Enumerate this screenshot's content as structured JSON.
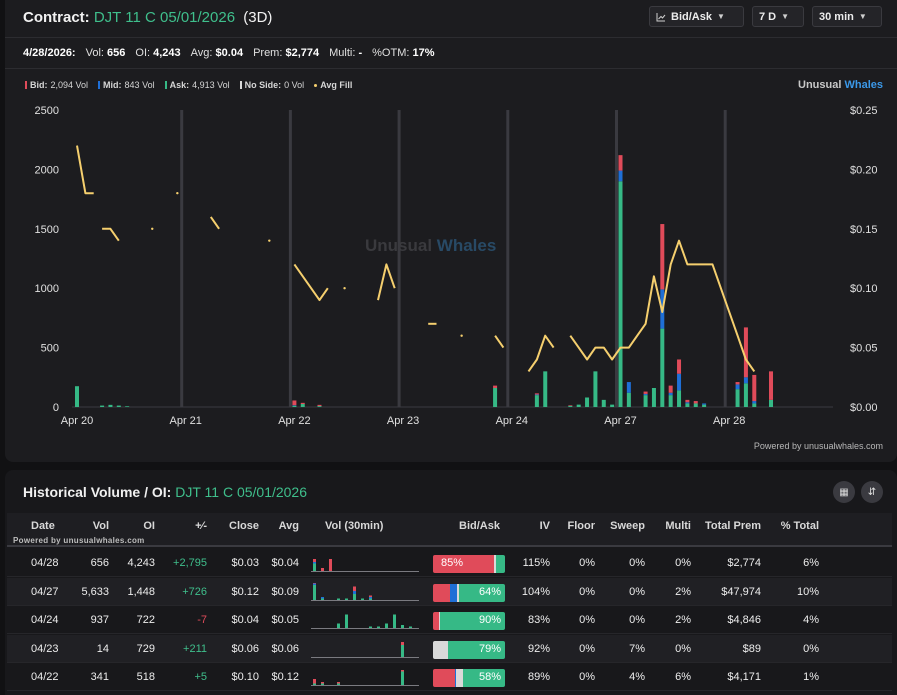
{
  "header": {
    "contract_label": "Contract:",
    "contract_name": "DJT 11 C 05/01/2026",
    "dte": "(3D)",
    "mode_label": "Bid/Ask",
    "range_label": "7 D",
    "interval_label": "30 min"
  },
  "stats": {
    "date": "4/28/2026:",
    "vol_label": "Vol:",
    "vol": "656",
    "oi_label": "OI:",
    "oi": "4,243",
    "avg_label": "Avg:",
    "avg": "$0.04",
    "prem_label": "Prem:",
    "prem": "$2,774",
    "multi_label": "Multi:",
    "multi": "-",
    "otm_label": "%OTM:",
    "otm": "17%"
  },
  "legend": {
    "bid": {
      "label": "Bid:",
      "value": "2,094 Vol"
    },
    "mid": {
      "label": "Mid:",
      "value": "843 Vol"
    },
    "ask": {
      "label": "Ask:",
      "value": "4,913 Vol"
    },
    "noside": {
      "label": "No Side:",
      "value": "0 Vol"
    },
    "avgfill": {
      "label": "Avg Fill"
    }
  },
  "brand": {
    "part1": "Unusual",
    "part2": "Whales"
  },
  "watermark": {
    "part1": "Unusual",
    "part2": "Whales"
  },
  "powered": "Powered by unusualwhales.com",
  "colors": {
    "bid": "#e04b5a",
    "mid": "#1f6fd6",
    "ask": "#36b986",
    "noside": "#d9d9d9",
    "avgfill": "#f5cf6e",
    "accent_green": "#3fbf8c"
  },
  "chart_data": {
    "type": "bar",
    "title": "",
    "x_tick_labels": [
      "Apr 20",
      "Apr 21",
      "Apr 22",
      "Apr 23",
      "Apr 24",
      "Apr 27",
      "Apr 28"
    ],
    "y_left_ticks": [
      "2500",
      "2000",
      "1500",
      "1000",
      "500",
      "0"
    ],
    "y_right_ticks": [
      "$0.25",
      "$0.20",
      "$0.15",
      "$0.10",
      "$0.05",
      "$0.00"
    ],
    "y_left_range": [
      0,
      2500
    ],
    "y_right_range": [
      0,
      0.25
    ],
    "grid": "vertical day separators",
    "session_slots": 13,
    "volume_bars": [
      {
        "day": 0,
        "slot": 0,
        "ask": 175,
        "mid": 0,
        "bid": 0
      },
      {
        "day": 0,
        "slot": 3,
        "ask": 12,
        "mid": 0,
        "bid": 0
      },
      {
        "day": 0,
        "slot": 4,
        "ask": 18,
        "mid": 0,
        "bid": 0
      },
      {
        "day": 0,
        "slot": 5,
        "ask": 12,
        "mid": 0,
        "bid": 0
      },
      {
        "day": 0,
        "slot": 6,
        "ask": 6,
        "mid": 0,
        "bid": 0
      },
      {
        "day": 2,
        "slot": 0,
        "ask": 10,
        "mid": 5,
        "bid": 40
      },
      {
        "day": 2,
        "slot": 1,
        "ask": 25,
        "mid": 0,
        "bid": 10
      },
      {
        "day": 2,
        "slot": 3,
        "ask": 8,
        "mid": 0,
        "bid": 10
      },
      {
        "day": 3,
        "slot": 11,
        "ask": 160,
        "mid": 0,
        "bid": 20
      },
      {
        "day": 4,
        "slot": 3,
        "ask": 100,
        "mid": 5,
        "bid": 10
      },
      {
        "day": 4,
        "slot": 4,
        "ask": 300,
        "mid": 0,
        "bid": 0
      },
      {
        "day": 4,
        "slot": 7,
        "ask": 10,
        "mid": 0,
        "bid": 5
      },
      {
        "day": 4,
        "slot": 8,
        "ask": 20,
        "mid": 0,
        "bid": 0
      },
      {
        "day": 4,
        "slot": 9,
        "ask": 80,
        "mid": 0,
        "bid": 0
      },
      {
        "day": 4,
        "slot": 10,
        "ask": 300,
        "mid": 0,
        "bid": 0
      },
      {
        "day": 4,
        "slot": 11,
        "ask": 60,
        "mid": 0,
        "bid": 0
      },
      {
        "day": 4,
        "slot": 12,
        "ask": 20,
        "mid": 0,
        "bid": 0
      },
      {
        "day": 5,
        "slot": 0,
        "ask": 1900,
        "mid": 90,
        "bid": 130
      },
      {
        "day": 5,
        "slot": 1,
        "ask": 120,
        "mid": 90,
        "bid": 0
      },
      {
        "day": 5,
        "slot": 3,
        "ask": 100,
        "mid": 10,
        "bid": 20
      },
      {
        "day": 5,
        "slot": 4,
        "ask": 160,
        "mid": 0,
        "bid": 0
      },
      {
        "day": 5,
        "slot": 5,
        "ask": 660,
        "mid": 330,
        "bid": 550
      },
      {
        "day": 5,
        "slot": 6,
        "ask": 100,
        "mid": 20,
        "bid": 60
      },
      {
        "day": 5,
        "slot": 7,
        "ask": 140,
        "mid": 140,
        "bid": 120
      },
      {
        "day": 5,
        "slot": 8,
        "ask": 30,
        "mid": 10,
        "bid": 20
      },
      {
        "day": 5,
        "slot": 9,
        "ask": 30,
        "mid": 0,
        "bid": 20
      },
      {
        "day": 5,
        "slot": 10,
        "ask": 20,
        "mid": 10,
        "bid": 0
      },
      {
        "day": 6,
        "slot": 1,
        "ask": 150,
        "mid": 40,
        "bid": 20
      },
      {
        "day": 6,
        "slot": 2,
        "ask": 200,
        "mid": 50,
        "bid": 420
      },
      {
        "day": 6,
        "slot": 3,
        "ask": 30,
        "mid": 20,
        "bid": 220
      },
      {
        "day": 6,
        "slot": 5,
        "ask": 60,
        "mid": 0,
        "bid": 240
      }
    ],
    "avg_fill_segments": [
      [
        {
          "day": 0,
          "slot": 0,
          "v": 0.22
        },
        {
          "day": 0,
          "slot": 1,
          "v": 0.18
        },
        {
          "day": 0,
          "slot": 2,
          "v": 0.18
        }
      ],
      [
        {
          "day": 0,
          "slot": 3,
          "v": 0.15
        },
        {
          "day": 0,
          "slot": 4,
          "v": 0.15
        },
        {
          "day": 0,
          "slot": 5,
          "v": 0.14
        }
      ],
      [
        {
          "day": 0,
          "slot": 9,
          "v": 0.15
        }
      ],
      [
        {
          "day": 0,
          "slot": 12,
          "v": 0.18
        }
      ],
      [
        {
          "day": 1,
          "slot": 3,
          "v": 0.16
        },
        {
          "day": 1,
          "slot": 4,
          "v": 0.15
        }
      ],
      [
        {
          "day": 1,
          "slot": 10,
          "v": 0.14
        }
      ],
      [
        {
          "day": 2,
          "slot": 0,
          "v": 0.12
        },
        {
          "day": 2,
          "slot": 3,
          "v": 0.09
        },
        {
          "day": 2,
          "slot": 4,
          "v": 0.1
        }
      ],
      [
        {
          "day": 2,
          "slot": 6,
          "v": 0.1
        }
      ],
      [
        {
          "day": 2,
          "slot": 10,
          "v": 0.09
        },
        {
          "day": 2,
          "slot": 11,
          "v": 0.12
        },
        {
          "day": 2,
          "slot": 12,
          "v": 0.1
        }
      ],
      [
        {
          "day": 3,
          "slot": 3,
          "v": 0.07
        },
        {
          "day": 3,
          "slot": 4,
          "v": 0.07
        }
      ],
      [
        {
          "day": 3,
          "slot": 7,
          "v": 0.06
        }
      ],
      [
        {
          "day": 3,
          "slot": 11,
          "v": 0.06
        },
        {
          "day": 3,
          "slot": 12,
          "v": 0.05
        }
      ],
      [
        {
          "day": 4,
          "slot": 2,
          "v": 0.03
        },
        {
          "day": 4,
          "slot": 3,
          "v": 0.04
        },
        {
          "day": 4,
          "slot": 4,
          "v": 0.06
        },
        {
          "day": 4,
          "slot": 5,
          "v": 0.05
        }
      ],
      [
        {
          "day": 4,
          "slot": 7,
          "v": 0.06
        },
        {
          "day": 4,
          "slot": 8,
          "v": 0.05
        },
        {
          "day": 4,
          "slot": 9,
          "v": 0.04
        },
        {
          "day": 4,
          "slot": 10,
          "v": 0.05
        },
        {
          "day": 4,
          "slot": 11,
          "v": 0.05
        },
        {
          "day": 4,
          "slot": 12,
          "v": 0.04
        },
        {
          "day": 5,
          "slot": 0,
          "v": 0.05
        },
        {
          "day": 5,
          "slot": 1,
          "v": 0.05
        },
        {
          "day": 5,
          "slot": 2,
          "v": 0.06
        },
        {
          "day": 5,
          "slot": 3,
          "v": 0.07
        },
        {
          "day": 5,
          "slot": 4,
          "v": 0.11
        },
        {
          "day": 5,
          "slot": 5,
          "v": 0.08
        },
        {
          "day": 5,
          "slot": 6,
          "v": 0.12
        },
        {
          "day": 5,
          "slot": 7,
          "v": 0.14
        },
        {
          "day": 5,
          "slot": 8,
          "v": 0.12
        },
        {
          "day": 5,
          "slot": 9,
          "v": 0.12
        },
        {
          "day": 5,
          "slot": 10,
          "v": 0.12
        },
        {
          "day": 5,
          "slot": 11,
          "v": 0.12
        },
        {
          "day": 6,
          "slot": 1,
          "v": 0.06
        },
        {
          "day": 6,
          "slot": 2,
          "v": 0.04
        },
        {
          "day": 6,
          "slot": 3,
          "v": 0.03
        }
      ]
    ]
  },
  "history": {
    "title": "Historical Volume / OI:",
    "contract": "DJT 11 C 05/01/2026",
    "powered_small": "Powered by unusualwhales.com",
    "columns": [
      "Date",
      "Vol",
      "OI",
      "+⁄-",
      "Close",
      "Avg",
      "Vol (30min)",
      "Bid/Ask",
      "IV",
      "Floor",
      "Sweep",
      "Multi",
      "Total Prem",
      "% Total"
    ],
    "rows": [
      {
        "date": "04/28",
        "vol": "656",
        "oi": "4,243",
        "chg": "+2,795",
        "close": "$0.03",
        "avg": "$0.04",
        "bidask_label": "85%",
        "bid": 0.85,
        "mid": 0.0,
        "noside": 0.03,
        "ask": 0.12,
        "label_on": "bid",
        "iv": "115%",
        "floor": "0%",
        "sweep": "0%",
        "multi": "0%",
        "prem": "$2,774",
        "pct_total": "6%",
        "spark": [
          {
            "a": 5,
            "b": 2,
            "m": 1
          },
          {
            "a": 0,
            "b": 2,
            "m": 0
          },
          {
            "a": 0,
            "b": 8,
            "m": 0
          },
          {
            "a": 0,
            "b": 0,
            "m": 0
          },
          {
            "a": 0,
            "b": 0,
            "m": 0
          },
          {
            "a": 0,
            "b": 0,
            "m": 0
          },
          {
            "a": 0,
            "b": 0,
            "m": 0
          },
          {
            "a": 0,
            "b": 0,
            "m": 0
          },
          {
            "a": 0,
            "b": 0,
            "m": 0
          },
          {
            "a": 0,
            "b": 0,
            "m": 0
          },
          {
            "a": 0,
            "b": 0,
            "m": 0
          },
          {
            "a": 0,
            "b": 0,
            "m": 0
          },
          {
            "a": 0,
            "b": 0,
            "m": 0
          }
        ]
      },
      {
        "date": "04/27",
        "vol": "5,633",
        "oi": "1,448",
        "chg": "+726",
        "close": "$0.12",
        "avg": "$0.09",
        "bidask_label": "64%",
        "bid": 0.24,
        "mid": 0.1,
        "noside": 0.02,
        "ask": 0.64,
        "label_on": "ask",
        "iv": "104%",
        "floor": "0%",
        "sweep": "0%",
        "multi": "2%",
        "prem": "$47,974",
        "pct_total": "10%",
        "spark": [
          {
            "a": 10,
            "b": 1,
            "m": 1
          },
          {
            "a": 1,
            "b": 0,
            "m": 1
          },
          {
            "a": 0,
            "b": 0,
            "m": 0
          },
          {
            "a": 1,
            "b": 0,
            "m": 0
          },
          {
            "a": 1,
            "b": 0,
            "m": 0
          },
          {
            "a": 4,
            "b": 3,
            "m": 2
          },
          {
            "a": 1,
            "b": 0,
            "m": 0
          },
          {
            "a": 1,
            "b": 1,
            "m": 1
          },
          {
            "a": 0,
            "b": 0,
            "m": 0
          },
          {
            "a": 0,
            "b": 0,
            "m": 0
          },
          {
            "a": 0,
            "b": 0,
            "m": 0
          },
          {
            "a": 0,
            "b": 0,
            "m": 0
          },
          {
            "a": 0,
            "b": 0,
            "m": 0
          }
        ]
      },
      {
        "date": "04/24",
        "vol": "937",
        "oi": "722",
        "chg": "-7",
        "close": "$0.04",
        "avg": "$0.05",
        "bidask_label": "90%",
        "bid": 0.08,
        "mid": 0.0,
        "noside": 0.02,
        "ask": 0.9,
        "label_on": "ask",
        "iv": "83%",
        "floor": "0%",
        "sweep": "0%",
        "multi": "2%",
        "prem": "$4,846",
        "pct_total": "4%",
        "spark": [
          {
            "a": 0,
            "b": 0,
            "m": 0
          },
          {
            "a": 0,
            "b": 0,
            "m": 0
          },
          {
            "a": 0,
            "b": 0,
            "m": 0
          },
          {
            "a": 3,
            "b": 0,
            "m": 0
          },
          {
            "a": 9,
            "b": 0,
            "m": 0
          },
          {
            "a": 0,
            "b": 0,
            "m": 0
          },
          {
            "a": 0,
            "b": 0,
            "m": 0
          },
          {
            "a": 1,
            "b": 0,
            "m": 0
          },
          {
            "a": 1,
            "b": 0,
            "m": 0
          },
          {
            "a": 3,
            "b": 0,
            "m": 0
          },
          {
            "a": 9,
            "b": 0,
            "m": 0
          },
          {
            "a": 2,
            "b": 0,
            "m": 0
          },
          {
            "a": 1,
            "b": 0,
            "m": 0
          }
        ]
      },
      {
        "date": "04/23",
        "vol": "14",
        "oi": "729",
        "chg": "+211",
        "close": "$0.06",
        "avg": "$0.06",
        "bidask_label": "79%",
        "bid": 0.0,
        "mid": 0.0,
        "noside": 0.21,
        "ask": 0.79,
        "label_on": "ask",
        "iv": "92%",
        "floor": "0%",
        "sweep": "7%",
        "multi": "0%",
        "prem": "$89",
        "pct_total": "0%",
        "spark": [
          {
            "a": 0,
            "b": 0,
            "m": 0
          },
          {
            "a": 0,
            "b": 0,
            "m": 0
          },
          {
            "a": 0,
            "b": 0,
            "m": 0
          },
          {
            "a": 0,
            "b": 0,
            "m": 0
          },
          {
            "a": 0,
            "b": 0,
            "m": 0
          },
          {
            "a": 0,
            "b": 0,
            "m": 0
          },
          {
            "a": 0,
            "b": 0,
            "m": 0
          },
          {
            "a": 0,
            "b": 0,
            "m": 0
          },
          {
            "a": 0,
            "b": 0,
            "m": 0
          },
          {
            "a": 0,
            "b": 0,
            "m": 0
          },
          {
            "a": 0,
            "b": 0,
            "m": 0
          },
          {
            "a": 8,
            "b": 2,
            "m": 0
          },
          {
            "a": 0,
            "b": 0,
            "m": 0
          }
        ]
      },
      {
        "date": "04/22",
        "vol": "341",
        "oi": "518",
        "chg": "+5",
        "close": "$0.10",
        "avg": "$0.12",
        "bidask_label": "58%",
        "bid": 0.3,
        "mid": 0.02,
        "noside": 0.1,
        "ask": 0.58,
        "label_on": "ask",
        "iv": "89%",
        "floor": "0%",
        "sweep": "4%",
        "multi": "6%",
        "prem": "$4,171",
        "pct_total": "1%",
        "spark": [
          {
            "a": 1,
            "b": 3,
            "m": 0
          },
          {
            "a": 1,
            "b": 1,
            "m": 0
          },
          {
            "a": 0,
            "b": 0,
            "m": 0
          },
          {
            "a": 1,
            "b": 1,
            "m": 0
          },
          {
            "a": 0,
            "b": 0,
            "m": 0
          },
          {
            "a": 0,
            "b": 0,
            "m": 0
          },
          {
            "a": 0,
            "b": 0,
            "m": 0
          },
          {
            "a": 0,
            "b": 0,
            "m": 0
          },
          {
            "a": 0,
            "b": 0,
            "m": 0
          },
          {
            "a": 0,
            "b": 0,
            "m": 0
          },
          {
            "a": 0,
            "b": 0,
            "m": 0
          },
          {
            "a": 9,
            "b": 1,
            "m": 0
          },
          {
            "a": 0,
            "b": 0,
            "m": 0
          }
        ]
      }
    ]
  }
}
